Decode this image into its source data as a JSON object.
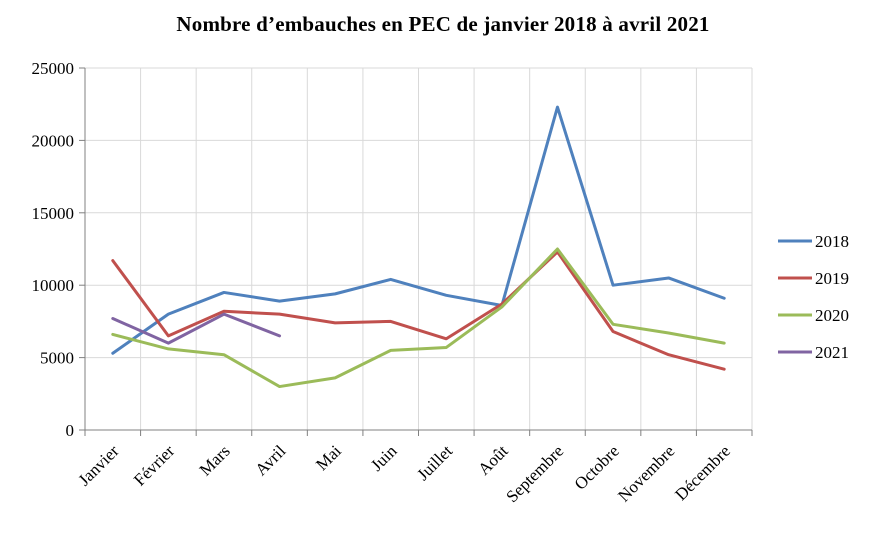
{
  "title": "Nombre d’embauches en PEC de janvier 2018 à avril 2021",
  "colors": {
    "gridline": "#d9d9d9",
    "axis": "#808080",
    "background": "#ffffff"
  },
  "chart_data": {
    "type": "line",
    "title": "Nombre d’embauches en PEC de janvier 2018 à avril 2021",
    "categories": [
      "Janvier",
      "Février",
      "Mars",
      "Avril",
      "Mai",
      "Juin",
      "Juillet",
      "Août",
      "Septembre",
      "Octobre",
      "Novembre",
      "Décembre"
    ],
    "series": [
      {
        "name": "2018",
        "color": "#4F81BD",
        "values": [
          5300,
          8000,
          9500,
          8900,
          9400,
          10400,
          9300,
          8600,
          22300,
          10000,
          10500,
          9100
        ]
      },
      {
        "name": "2019",
        "color": "#C0504D",
        "values": [
          11700,
          6500,
          8200,
          8000,
          7400,
          7500,
          6300,
          8700,
          12300,
          6800,
          5200,
          4200
        ]
      },
      {
        "name": "2020",
        "color": "#9BBB59",
        "values": [
          6600,
          5600,
          5200,
          3000,
          3600,
          5500,
          5700,
          8500,
          12500,
          7300,
          6700,
          6000
        ]
      },
      {
        "name": "2021",
        "color": "#8064A2",
        "values": [
          7700,
          6000,
          8000,
          6500
        ]
      }
    ],
    "xlabel": "",
    "ylabel": "",
    "ylim": [
      0,
      25000
    ],
    "ytick_step": 5000,
    "grid": "horizontal-and-vertical",
    "legend_position": "right"
  }
}
